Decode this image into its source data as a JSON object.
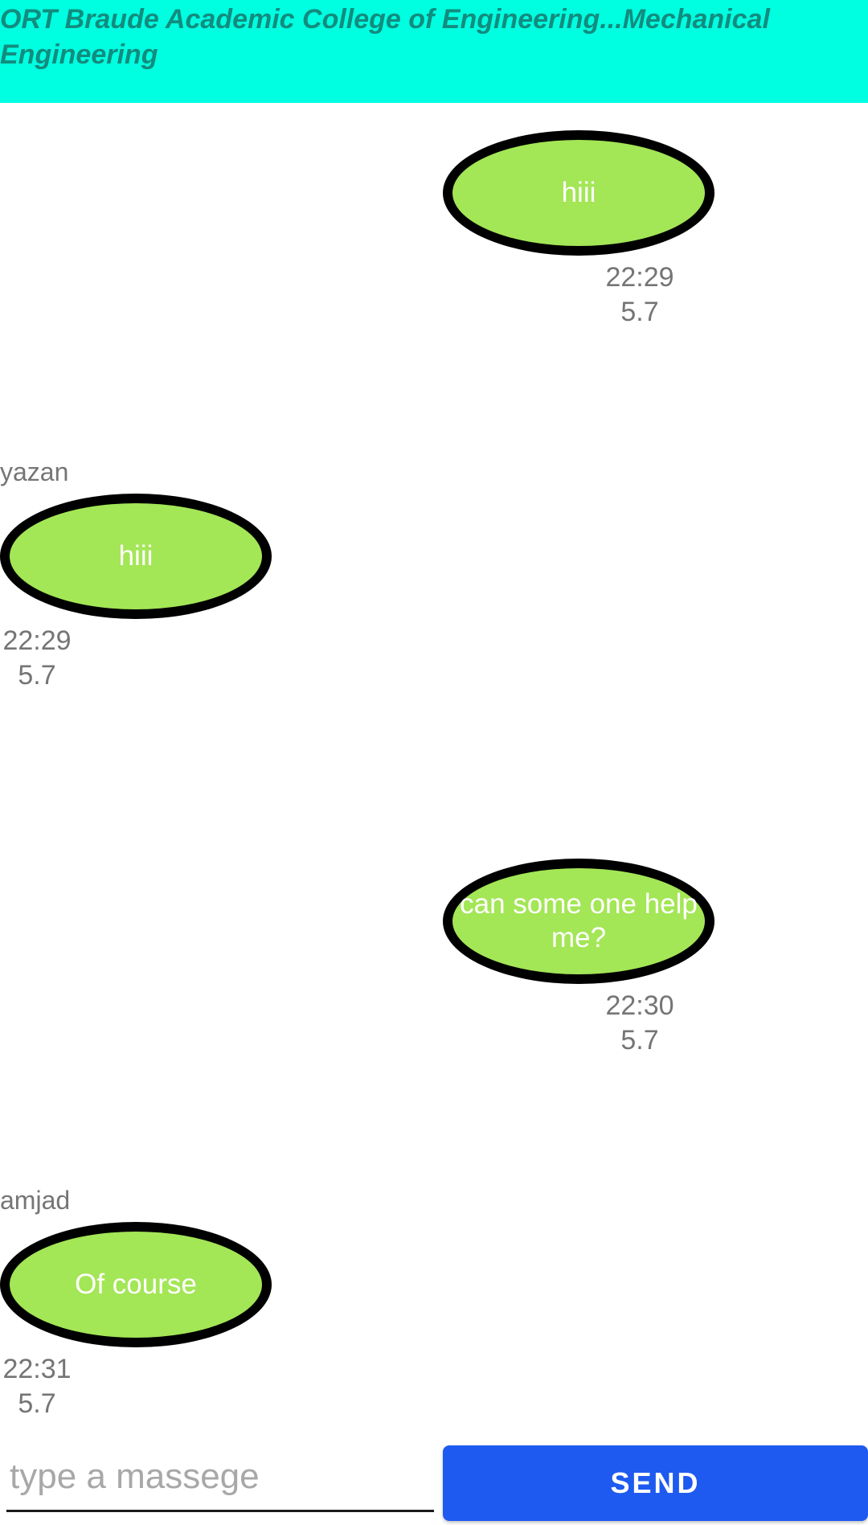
{
  "header": {
    "title": "ORT Braude Academic College of Engineering...Mechanical Engineering"
  },
  "messages": [
    {
      "side": "right",
      "sender": "",
      "text": "hiii",
      "time": "22:29",
      "date": "5.7"
    },
    {
      "side": "left",
      "sender": "yazan",
      "text": "hiii",
      "time": "22:29",
      "date": "5.7"
    },
    {
      "side": "right",
      "sender": "",
      "text": "can some one help me?",
      "time": "22:30",
      "date": "5.7"
    },
    {
      "side": "left",
      "sender": "amjad",
      "text": "Of course",
      "time": "22:31",
      "date": "5.7"
    }
  ],
  "composer": {
    "placeholder": "type a massege",
    "value": "",
    "send_label": "SEND"
  },
  "colors": {
    "header_bg": "#00FFE1",
    "header_text": "#128C7E",
    "bubble_fill": "#A3E656",
    "bubble_border": "#000000",
    "send_button": "#1E5AF0",
    "meta_text": "#757575"
  }
}
